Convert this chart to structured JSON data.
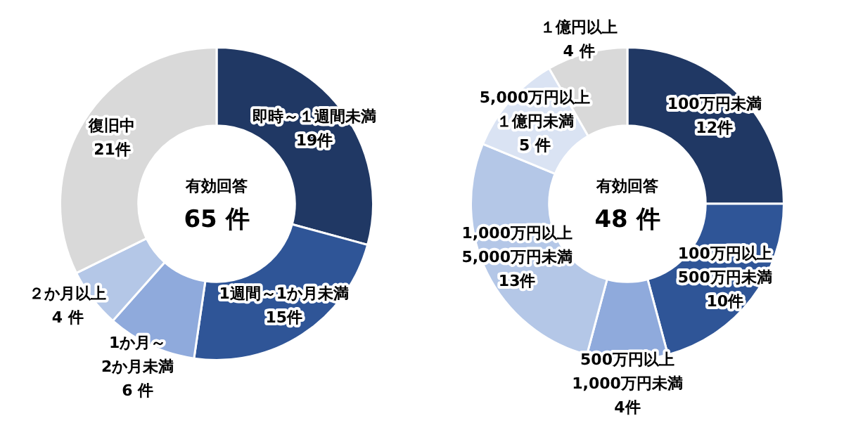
{
  "chart_data": [
    {
      "type": "donut",
      "categories": [
        "即時～１週間未満",
        "1週間～1か月未満",
        "1か月～2か月未満",
        "２か月以上",
        "復旧中"
      ],
      "values": [
        19,
        15,
        6,
        4,
        21
      ],
      "value_labels": [
        "19件",
        "15件",
        "6 件",
        "4 件",
        "21件"
      ],
      "colors": [
        "#203864",
        "#2f5597",
        "#8faadc",
        "#b4c7e7",
        "#d9d9d9"
      ],
      "annotations": [
        "有効回答",
        "65 件"
      ],
      "legend": false
    },
    {
      "type": "donut",
      "categories": [
        "100万円未満",
        "100万円以上500万円未満",
        "500万円以上1,000万円未満",
        "1,000万円以上5,000万円未満",
        "5,000万円以上１億円未満",
        "１億円以上"
      ],
      "values": [
        12,
        10,
        4,
        13,
        5,
        4
      ],
      "value_labels": [
        "12件",
        "10件",
        "4件",
        "13件",
        "5 件",
        "4 件"
      ],
      "colors": [
        "#203864",
        "#2f5597",
        "#8faadc",
        "#b4c7e7",
        "#dae3f3",
        "#d9d9d9"
      ],
      "annotations": [
        "有効回答",
        "48 件"
      ],
      "legend": false
    }
  ]
}
